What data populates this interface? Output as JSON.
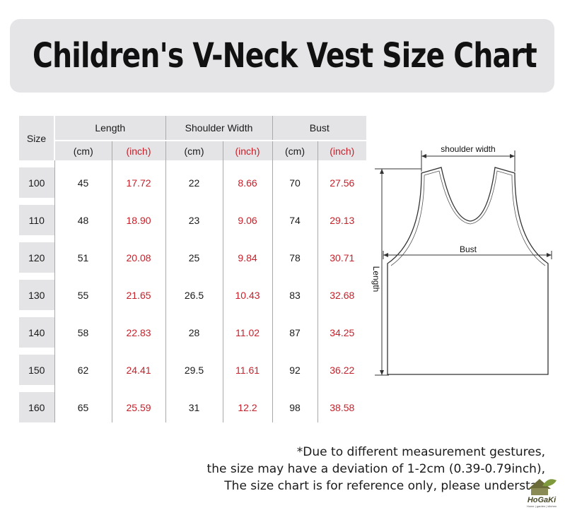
{
  "title": "Children's V-Neck Vest Size Chart",
  "table": {
    "size_header": "Size",
    "groups": [
      "Length",
      "Shoulder Width",
      "Bust"
    ],
    "units": [
      "(cm)",
      "(inch)",
      "(cm)",
      "(inch)",
      "(cm)",
      "(inch)"
    ],
    "rows": [
      [
        "100",
        "45",
        "17.72",
        "22",
        "8.66",
        "70",
        "27.56"
      ],
      [
        "110",
        "48",
        "18.90",
        "23",
        "9.06",
        "74",
        "29.13"
      ],
      [
        "120",
        "51",
        "20.08",
        "25",
        "9.84",
        "78",
        "30.71"
      ],
      [
        "130",
        "55",
        "21.65",
        "26.5",
        "10.43",
        "83",
        "32.68"
      ],
      [
        "140",
        "58",
        "22.83",
        "28",
        "11.02",
        "87",
        "34.25"
      ],
      [
        "150",
        "62",
        "24.41",
        "29.5",
        "11.61",
        "92",
        "36.22"
      ],
      [
        "160",
        "65",
        "25.59",
        "31",
        "12.2",
        "98",
        "38.58"
      ]
    ]
  },
  "diagram": {
    "shoulder_label": "shoulder width",
    "bust_label": "Bust",
    "length_label": "Length"
  },
  "note": [
    "*Due to different measurement gestures,",
    "the size may have a deviation of 1-2cm (0.39-0.79inch),",
    "The size chart is for reference only, please understan"
  ],
  "logo": {
    "text": "HoGaKi",
    "tagline": "Home | garden | kitchen"
  },
  "colors": {
    "inch": "#c8202a",
    "header_bg": "#e4e4e6",
    "banner_bg": "#e5e5e7"
  }
}
